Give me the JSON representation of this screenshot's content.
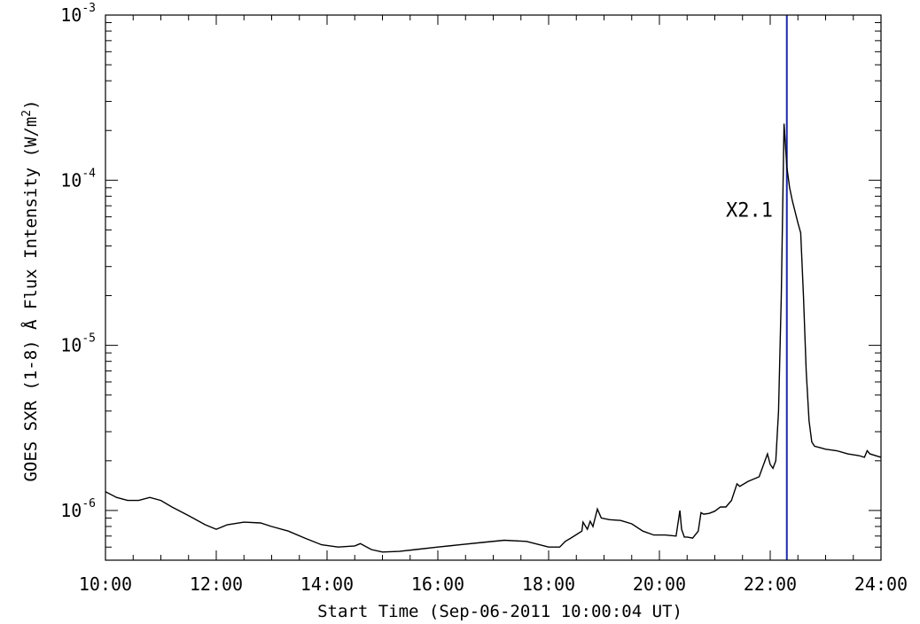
{
  "chart_data": {
    "type": "line",
    "title": "",
    "xlabel": "Start Time (Sep-06-2011 10:00:04 UT)",
    "ylabel_prefix": "GOES SXR (1-8) ",
    "ylabel_angstrom": "Å",
    "ylabel_suffix": " Flux Intensity (W/m",
    "ylabel_sup": "2",
    "ylabel_close": ")",
    "x_unit": "hours UT",
    "xlim": [
      10,
      24
    ],
    "ylim": [
      5e-07,
      0.001
    ],
    "yscale": "log",
    "x_ticks": [
      10,
      12,
      14,
      16,
      18,
      20,
      22,
      24
    ],
    "x_tick_labels": [
      "10:00",
      "12:00",
      "14:00",
      "16:00",
      "18:00",
      "20:00",
      "22:00",
      "24:00"
    ],
    "y_ticks": [
      {
        "base": "10",
        "exp": "-6",
        "value": 1e-06
      },
      {
        "base": "10",
        "exp": "-5",
        "value": 1e-05
      },
      {
        "base": "10",
        "exp": "-4",
        "value": 0.0001
      },
      {
        "base": "10",
        "exp": "-3",
        "value": 0.001
      }
    ],
    "grid": false,
    "series": [
      {
        "color": "#000000",
        "x": [
          10.0,
          10.2,
          10.4,
          10.6,
          10.8,
          11.0,
          11.2,
          11.5,
          11.8,
          12.0,
          12.2,
          12.5,
          12.8,
          13.0,
          13.3,
          13.6,
          13.9,
          14.2,
          14.5,
          14.6,
          14.8,
          15.0,
          15.3,
          15.6,
          16.0,
          16.4,
          16.8,
          17.2,
          17.6,
          18.0,
          18.2,
          18.3,
          18.4,
          18.6,
          18.62,
          18.7,
          18.75,
          18.8,
          18.88,
          18.95,
          19.1,
          19.3,
          19.5,
          19.7,
          19.9,
          20.1,
          20.3,
          20.37,
          20.4,
          20.45,
          20.5,
          20.6,
          20.7,
          20.75,
          20.8,
          20.9,
          21.0,
          21.1,
          21.2,
          21.3,
          21.4,
          21.45,
          21.6,
          21.8,
          21.95,
          22.0,
          22.05,
          22.1,
          22.15,
          22.2,
          22.25,
          22.3,
          22.35,
          22.4,
          22.5,
          22.55,
          22.6,
          22.65,
          22.7,
          22.75,
          22.8,
          22.9,
          23.0,
          23.2,
          23.4,
          23.6,
          23.7,
          23.75,
          23.8,
          24.0
        ],
        "y": [
          1.3e-06,
          1.2e-06,
          1.15e-06,
          1.15e-06,
          1.2e-06,
          1.15e-06,
          1.05e-06,
          9.3e-07,
          8.2e-07,
          7.7e-07,
          8.2e-07,
          8.5e-07,
          8.4e-07,
          8e-07,
          7.5e-07,
          6.8e-07,
          6.2e-07,
          6e-07,
          6.1e-07,
          6.3e-07,
          5.8e-07,
          5.6e-07,
          5.65e-07,
          5.8e-07,
          6e-07,
          6.2e-07,
          6.4e-07,
          6.6e-07,
          6.5e-07,
          6e-07,
          6e-07,
          6.5e-07,
          6.8e-07,
          7.5e-07,
          8.5e-07,
          7.7e-07,
          8.6e-07,
          8e-07,
          1.02e-06,
          9e-07,
          8.8e-07,
          8.7e-07,
          8.3e-07,
          7.5e-07,
          7.1e-07,
          7.1e-07,
          7e-07,
          1e-06,
          7.7e-07,
          6.9e-07,
          6.9e-07,
          6.8e-07,
          7.5e-07,
          9.7e-07,
          9.5e-07,
          9.6e-07,
          9.9e-07,
          1.05e-06,
          1.05e-06,
          1.15e-06,
          1.45e-06,
          1.4e-06,
          1.5e-06,
          1.6e-06,
          2.2e-06,
          1.9e-06,
          1.8e-06,
          2e-06,
          4e-06,
          2e-05,
          0.00022,
          0.00012,
          9e-05,
          7.5e-05,
          5.5e-05,
          4.8e-05,
          2e-05,
          7e-06,
          3.5e-06,
          2.6e-06,
          2.45e-06,
          2.4e-06,
          2.35e-06,
          2.3e-06,
          2.2e-06,
          2.15e-06,
          2.1e-06,
          2.3e-06,
          2.2e-06,
          2.1e-06
        ]
      }
    ],
    "markers": [
      {
        "x": 22.3,
        "color": "#1d2aa6"
      }
    ],
    "annotations": [
      {
        "text": "X2.1",
        "x": 21.2,
        "y": 6e-05
      }
    ]
  }
}
